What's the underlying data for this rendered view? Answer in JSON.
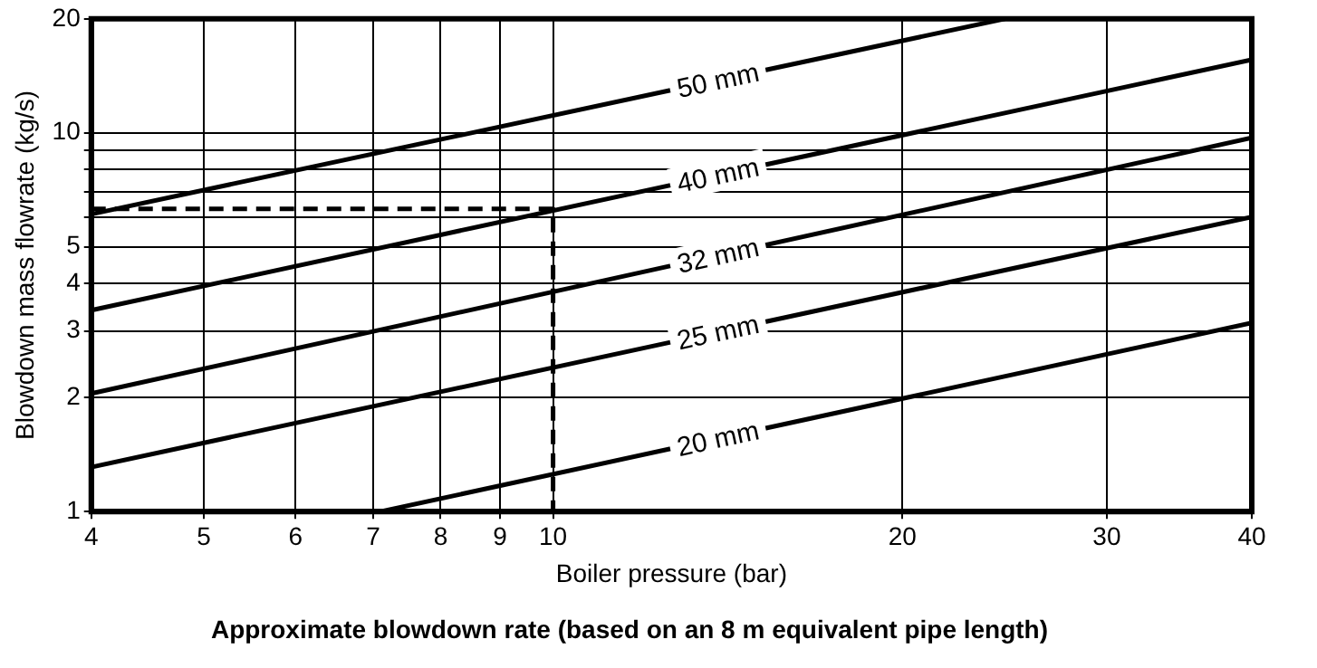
{
  "chart_data": {
    "type": "line",
    "title": "Approximate blowdown rate (based on an 8 m equivalent pipe length)",
    "xlabel": "Boiler pressure (bar)",
    "ylabel": "Blowdown mass flowrate (kg/s)",
    "log": "xy",
    "grid": true,
    "legend": false,
    "marker": "none",
    "xlim": [
      4,
      40
    ],
    "xticks": [
      4,
      5,
      6,
      7,
      8,
      9,
      10,
      20,
      30,
      40
    ],
    "ylim": [
      1,
      20
    ],
    "yticks": [
      1,
      2,
      3,
      4,
      5,
      {
        "value": 6,
        "label": null
      },
      {
        "value": 7,
        "label": null
      },
      {
        "value": 8,
        "label": null
      },
      {
        "value": 9,
        "label": null
      },
      10,
      20
    ],
    "series": [
      {
        "name": "50 mm",
        "color": "#000000",
        "x": [
          4,
          24.5
        ],
        "values": [
          6.1,
          20
        ]
      },
      {
        "name": "40 mm",
        "color": "#000000",
        "x": [
          4,
          40
        ],
        "values": [
          3.4,
          15.6
        ]
      },
      {
        "name": "32 mm",
        "color": "#000000",
        "x": [
          4,
          40
        ],
        "values": [
          2.05,
          9.7
        ]
      },
      {
        "name": "25 mm",
        "color": "#000000",
        "x": [
          4,
          40
        ],
        "values": [
          1.31,
          6.0
        ]
      },
      {
        "name": "20 mm",
        "color": "#000000",
        "x": [
          7.1,
          40
        ],
        "values": [
          1,
          3.15
        ]
      },
      {
        "color": "#000000",
        "line_style": "dashed",
        "x": [
          4,
          10,
          10
        ],
        "values": [
          6.3,
          6.3,
          1
        ]
      }
    ]
  }
}
